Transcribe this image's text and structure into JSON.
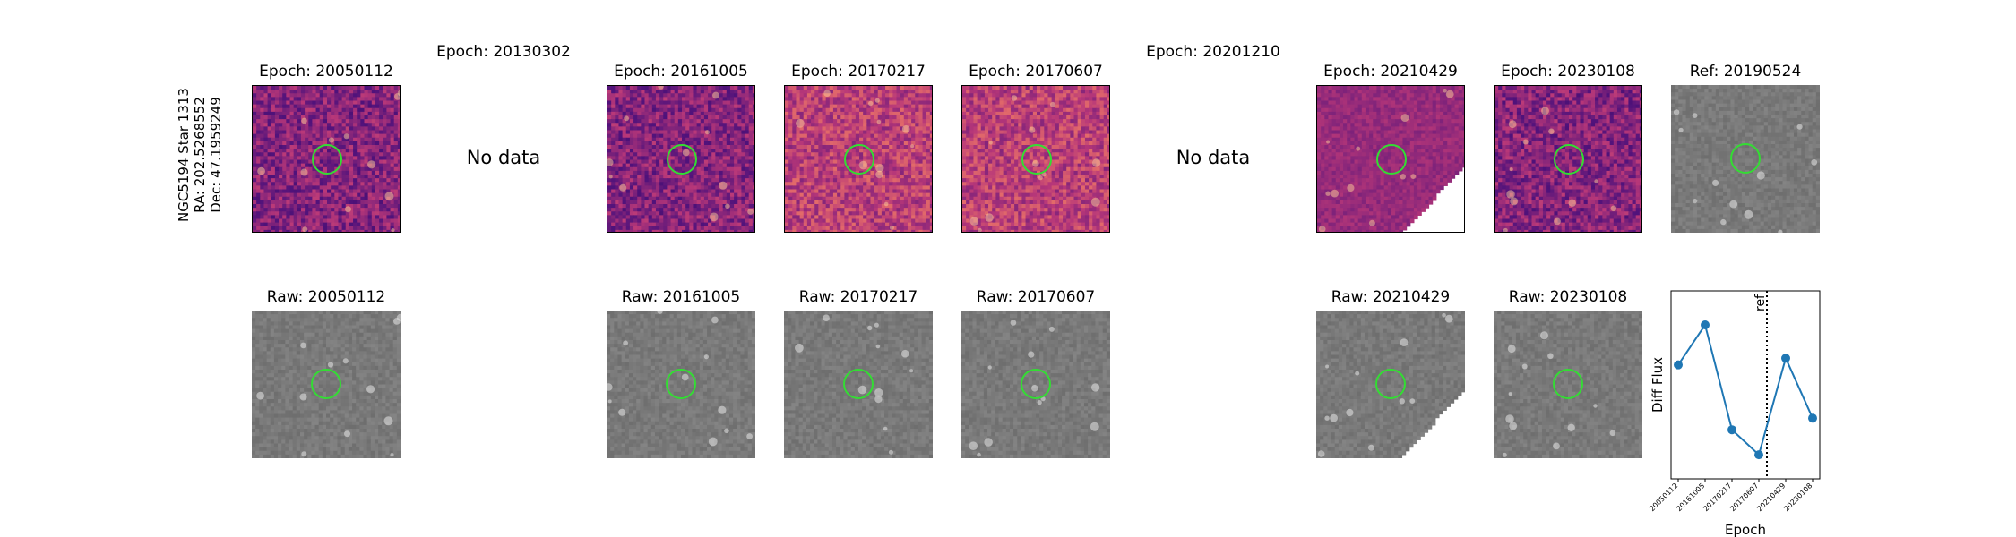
{
  "figure": {
    "star_label": [
      "NGC5194 Star 1313",
      "RA: 202.5268552",
      "Dec: 47.1959249"
    ],
    "no_data_text": "No data"
  },
  "top_row": [
    {
      "title": "Epoch: 20050112",
      "kind": "diff"
    },
    {
      "title": "Epoch: 20130302",
      "kind": "nodata"
    },
    {
      "title": "Epoch: 20161005",
      "kind": "diff"
    },
    {
      "title": "Epoch: 20170217",
      "kind": "diff"
    },
    {
      "title": "Epoch: 20170607",
      "kind": "diff"
    },
    {
      "title": "Epoch: 20201210",
      "kind": "nodata"
    },
    {
      "title": "Epoch: 20210429",
      "kind": "diff"
    },
    {
      "title": "Epoch: 20230108",
      "kind": "diff"
    },
    {
      "title": "Ref: 20190524",
      "kind": "ref"
    }
  ],
  "bottom_row": [
    {
      "title": "Raw: 20050112"
    },
    {
      "title": "Raw: 20161005"
    },
    {
      "title": "Raw: 20170217"
    },
    {
      "title": "Raw: 20170607"
    },
    {
      "title": "Raw: 20210429"
    },
    {
      "title": "Raw: 20230108"
    }
  ],
  "colors": {
    "aperture": "#33dd33",
    "series": "#1f77b4",
    "diff_cmap": "magma",
    "raw_cmap": "gray"
  },
  "chart_data": {
    "type": "line",
    "title": "",
    "xlabel": "Epoch",
    "ylabel": "Diff Flux",
    "categories": [
      "20050112",
      "20161005",
      "20170217",
      "20170607",
      "20210429",
      "20230108"
    ],
    "values": [
      0.62,
      0.86,
      0.23,
      0.08,
      0.66,
      0.3
    ],
    "ylim": [
      0,
      1
    ],
    "ref_line": {
      "label": "ref",
      "position_between": [
        "20170607",
        "20210429"
      ],
      "style": "dotted"
    },
    "yticks_shown": false,
    "grid": false
  }
}
